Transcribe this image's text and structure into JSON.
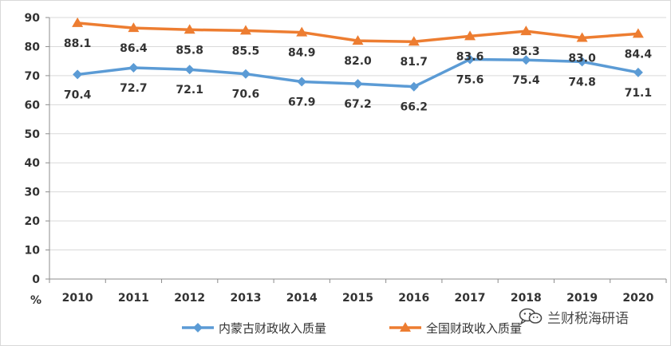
{
  "chart_data": {
    "type": "line",
    "categories": [
      "2010",
      "2011",
      "2012",
      "2013",
      "2014",
      "2015",
      "2016",
      "2017",
      "2018",
      "2019",
      "2020"
    ],
    "ylim": [
      0,
      90
    ],
    "yticks": [
      0,
      10,
      20,
      30,
      40,
      50,
      60,
      70,
      80,
      90
    ],
    "ylabel": "%",
    "grid": true,
    "legend_position": "bottom",
    "series": [
      {
        "name": "内蒙古财政收入质量",
        "color": "#5b9bd5",
        "marker": "diamond",
        "label_position": "below",
        "values": [
          70.4,
          72.7,
          72.1,
          70.6,
          67.9,
          67.2,
          66.2,
          75.6,
          75.4,
          74.8,
          71.1
        ]
      },
      {
        "name": "全国财政收入质量",
        "color": "#ed7d31",
        "marker": "triangle",
        "label_position": "below",
        "values": [
          88.1,
          86.4,
          85.8,
          85.5,
          84.9,
          82.0,
          81.7,
          83.6,
          85.3,
          83.0,
          84.4
        ]
      }
    ]
  },
  "watermark": {
    "text": "兰财税海研语",
    "icon": "wechat-icon"
  }
}
